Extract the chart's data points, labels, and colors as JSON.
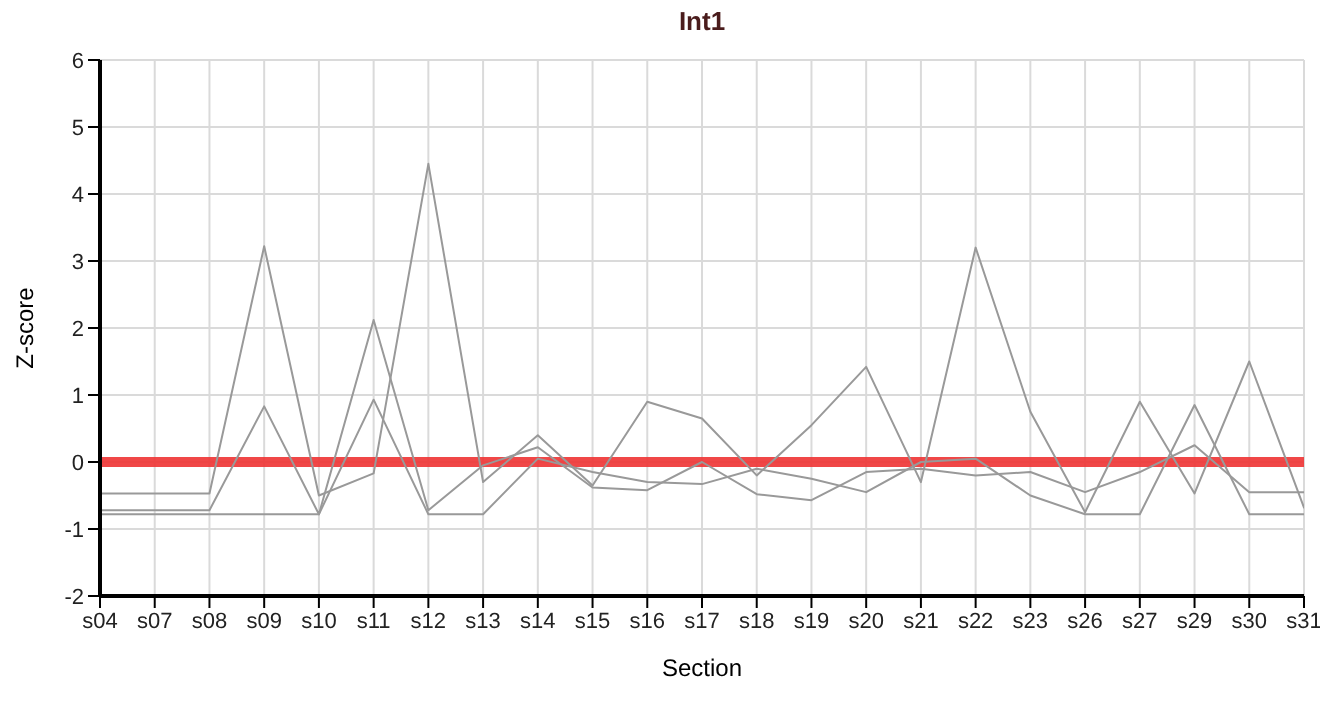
{
  "chart_data": {
    "type": "line",
    "title": "Int1",
    "xlabel": "Section",
    "ylabel": "Z-score",
    "categories": [
      "s04",
      "s07",
      "s08",
      "s09",
      "s10",
      "s11",
      "s12",
      "s13",
      "s14",
      "s15",
      "s16",
      "s17",
      "s18",
      "s19",
      "s20",
      "s21",
      "s22",
      "s23",
      "s26",
      "s27",
      "s29",
      "s30",
      "s31"
    ],
    "series": [
      {
        "color": "#999999",
        "values": [
          -0.47,
          -0.47,
          -0.47,
          3.22,
          -0.5,
          -0.17,
          4.45,
          -0.3,
          0.4,
          -0.35,
          0.9,
          0.65,
          -0.2,
          0.55,
          1.42,
          -0.3,
          3.2,
          0.75,
          -0.75,
          0.9,
          -0.47,
          1.5,
          -0.68
        ]
      },
      {
        "color": "#999999",
        "values": [
          -0.72,
          -0.72,
          -0.72,
          0.83,
          -0.78,
          2.12,
          -0.72,
          -0.05,
          0.22,
          -0.38,
          -0.42,
          0.0,
          -0.48,
          -0.57,
          -0.15,
          -0.1,
          -0.2,
          -0.15,
          -0.45,
          -0.15,
          0.25,
          -0.45,
          -0.45
        ]
      },
      {
        "color": "#999999",
        "values": [
          -0.78,
          -0.78,
          -0.78,
          -0.78,
          -0.78,
          0.93,
          -0.78,
          -0.78,
          0.05,
          -0.15,
          -0.3,
          -0.33,
          -0.1,
          -0.25,
          -0.45,
          0.0,
          0.05,
          -0.5,
          -0.78,
          -0.78,
          0.85,
          -0.78,
          -0.78
        ]
      }
    ],
    "ylim": [
      -2,
      6
    ],
    "yticks": [
      -2,
      -1,
      0,
      1,
      2,
      3,
      4,
      5,
      6
    ],
    "ref_lines": [
      {
        "axis": "y",
        "value": 0,
        "color": "#ee3333"
      }
    ],
    "grid": true,
    "legend": false,
    "marker": "none",
    "line_style": "solid"
  }
}
